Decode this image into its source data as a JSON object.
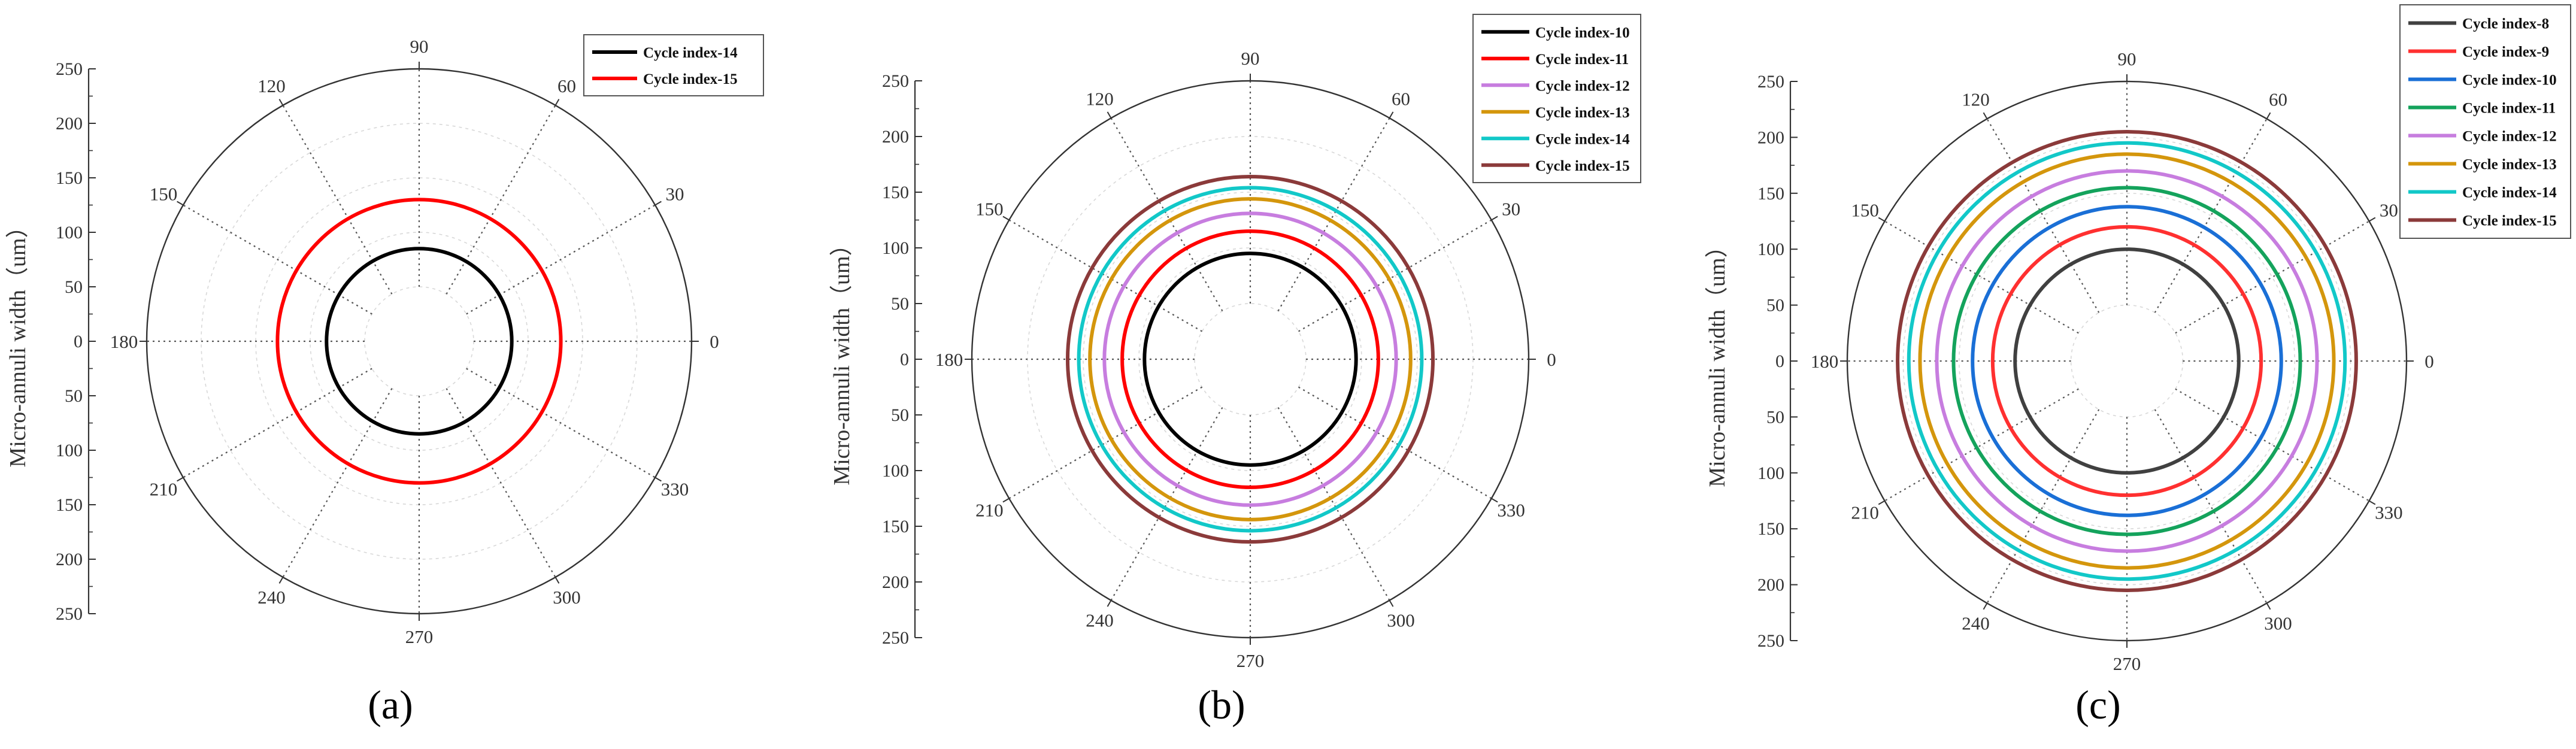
{
  "chart_data": [
    {
      "panel": "a",
      "type": "polar",
      "panel_label": "(a)",
      "ylabel": "Micro-annuli width（um）",
      "rlim": [
        0,
        250
      ],
      "radial_ticks": [
        "250",
        "200",
        "150",
        "100",
        "50",
        "0",
        "50",
        "100",
        "150",
        "200",
        "250"
      ],
      "angle_ticks": [
        "0",
        "30",
        "60",
        "90",
        "120",
        "150",
        "180",
        "210",
        "240",
        "270",
        "300",
        "330"
      ],
      "grid": true,
      "legend_position": "top-right",
      "series": [
        {
          "name": "Cycle index-14",
          "color": "#000000",
          "r": 85
        },
        {
          "name": "Cycle index-15",
          "color": "#ff0000",
          "r": 130
        }
      ]
    },
    {
      "panel": "b",
      "type": "polar",
      "panel_label": "(b)",
      "ylabel": "Micro-annuli width（um）",
      "rlim": [
        0,
        250
      ],
      "radial_ticks": [
        "250",
        "200",
        "150",
        "100",
        "50",
        "0",
        "50",
        "100",
        "150",
        "200",
        "250"
      ],
      "angle_ticks": [
        "0",
        "30",
        "60",
        "90",
        "120",
        "150",
        "180",
        "210",
        "240",
        "270",
        "300",
        "330"
      ],
      "grid": true,
      "legend_position": "top-right",
      "series": [
        {
          "name": "Cycle index-10",
          "color": "#000000",
          "r": 95
        },
        {
          "name": "Cycle index-11",
          "color": "#ff0000",
          "r": 115
        },
        {
          "name": "Cycle index-12",
          "color": "#c77ddf",
          "r": 131
        },
        {
          "name": "Cycle index-13",
          "color": "#d4960c",
          "r": 144
        },
        {
          "name": "Cycle index-14",
          "color": "#12c8c8",
          "r": 154
        },
        {
          "name": "Cycle index-15",
          "color": "#8b3a3a",
          "r": 164
        }
      ]
    },
    {
      "panel": "c",
      "type": "polar",
      "panel_label": "(c)",
      "ylabel": "Micro-annuli width（um）",
      "rlim": [
        0,
        250
      ],
      "radial_ticks": [
        "250",
        "200",
        "150",
        "100",
        "50",
        "0",
        "50",
        "100",
        "150",
        "200",
        "250"
      ],
      "angle_ticks": [
        "0",
        "30",
        "60",
        "90",
        "120",
        "150",
        "180",
        "210",
        "240",
        "270",
        "300",
        "330"
      ],
      "grid": true,
      "legend_position": "top-right",
      "series": [
        {
          "name": "Cycle index-8",
          "color": "#404040",
          "r": 100
        },
        {
          "name": "Cycle index-9",
          "color": "#ff3030",
          "r": 120
        },
        {
          "name": "Cycle index-10",
          "color": "#1a6fd6",
          "r": 138
        },
        {
          "name": "Cycle index-11",
          "color": "#14a35c",
          "r": 155
        },
        {
          "name": "Cycle index-12",
          "color": "#c77ddf",
          "r": 170
        },
        {
          "name": "Cycle index-13",
          "color": "#d4960c",
          "r": 185
        },
        {
          "name": "Cycle index-14",
          "color": "#12c8c8",
          "r": 195
        },
        {
          "name": "Cycle index-15",
          "color": "#8b3a3a",
          "r": 205
        }
      ]
    }
  ]
}
